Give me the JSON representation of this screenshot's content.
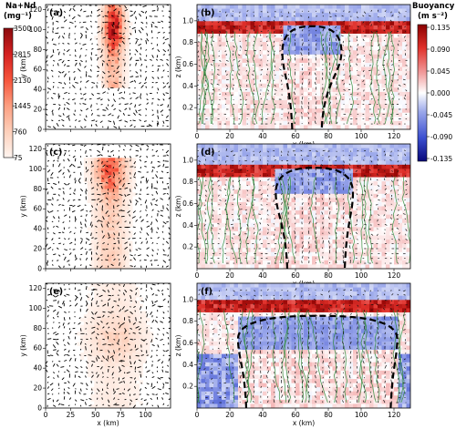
{
  "chart_data": {
    "type": "heatmap",
    "layout": "3 rows x 2 columns of panels, colorbars at far left and far right",
    "colorbar_left": {
      "title_line1": "Na+Nd",
      "title_line2": "(mg⁻¹)",
      "ticks": [
        "3500",
        "2815",
        "2130",
        "1445",
        "760",
        "75"
      ],
      "range": [
        75,
        3500
      ],
      "colormap": "white-to-red",
      "colors": [
        "#fff5f0",
        "#fdd0bb",
        "#fc9f81",
        "#f6553c",
        "#d42121",
        "#8a0a0e"
      ]
    },
    "colorbar_right": {
      "title_line1": "Buoyancy",
      "title_line2": "(m s⁻²)",
      "ticks": [
        "0.135",
        "0.090",
        "0.045",
        "0.000",
        "-0.045",
        "-0.090",
        "-0.135"
      ],
      "range": [
        -0.135,
        0.135
      ],
      "colormap": "blue-white-red (diverging)",
      "colors": [
        "#08087a",
        "#3b4fd0",
        "#9aa7ea",
        "#ffffff",
        "#f2a0a0",
        "#e0302a",
        "#8b0000"
      ]
    },
    "left_column": {
      "xlabel": "x (km)",
      "ylabel": "y (km)",
      "xlim": [
        0,
        125
      ],
      "ylim": [
        0,
        125
      ],
      "xticks": [
        "0",
        "25",
        "50",
        "75",
        "100"
      ],
      "yticks": [
        "0",
        "20",
        "40",
        "60",
        "80",
        "100",
        "120"
      ],
      "overlay": "horizontal wind vectors (black arrows)"
    },
    "right_column": {
      "xlabel": "x (km)",
      "ylabel": "z (km)",
      "xlim": [
        0,
        130
      ],
      "ylim": [
        0,
        1.15
      ],
      "xticks": [
        "0",
        "20",
        "40",
        "60",
        "80",
        "100",
        "120"
      ],
      "yticks": [
        "0.2",
        "0.4",
        "0.6",
        "0.8",
        "1.0"
      ],
      "overlay": "wind vectors (black), green contours, dashed black cloud outline"
    },
    "panels": [
      {
        "label": "(a)",
        "kind": "plan",
        "plume_center_x": 68,
        "plume_width": 14,
        "peak": 3200,
        "plume_ystart": 40,
        "plume_ystop": 125,
        "head_y": 100
      },
      {
        "label": "(b)",
        "kind": "section",
        "cloud_x": [
          52,
          88
        ],
        "cloud_top_z": 0.95,
        "cloud_neck_x": [
          58,
          76
        ],
        "inversion_z": 0.93
      },
      {
        "label": "(c)",
        "kind": "plan",
        "plume_center_x": 65,
        "plume_width": 22,
        "peak": 2200,
        "plume_ystart": 0,
        "plume_ystop": 110,
        "head_y": 98
      },
      {
        "label": "(d)",
        "kind": "section",
        "cloud_x": [
          48,
          95
        ],
        "cloud_top_z": 0.93,
        "cloud_neck_x": [
          55,
          90
        ],
        "inversion_z": 0.9
      },
      {
        "label": "(e)",
        "kind": "plan",
        "plume_center_x": 70,
        "plume_width": 40,
        "peak": 700,
        "plume_ystart": 0,
        "plume_ystop": 125,
        "head_y": 70
      },
      {
        "label": "(f)",
        "kind": "section",
        "cloud_x": [
          25,
          122
        ],
        "cloud_top_z": 0.85,
        "cloud_neck_x": [
          30,
          118
        ],
        "inversion_z": 0.95
      }
    ]
  }
}
